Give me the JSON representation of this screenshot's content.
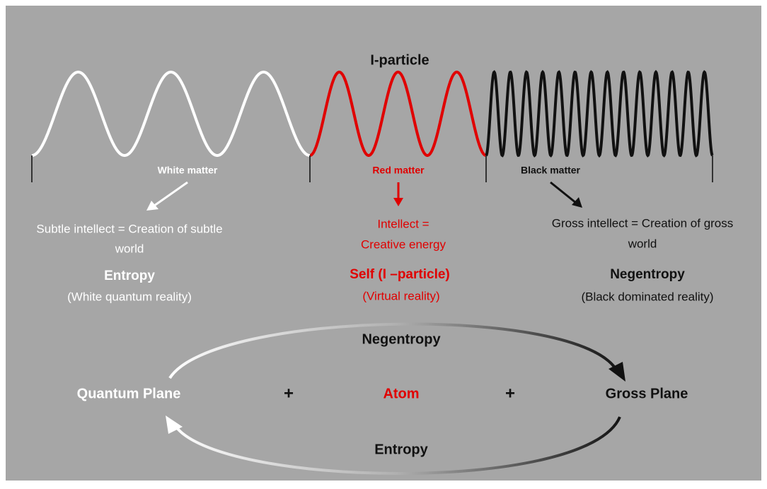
{
  "diagram": {
    "title": "I-particle",
    "matters": [
      {
        "label": "White matter",
        "intellect": [
          "Subtle intellect = Creation of subtle",
          "world"
        ],
        "heading": "Entropy",
        "reality": "(White quantum reality)"
      },
      {
        "label": "Red matter",
        "intellect": [
          "Intellect =",
          "Creative energy"
        ],
        "heading": "Self (I –particle)",
        "reality": "(Virtual reality)"
      },
      {
        "label": "Black matter",
        "intellect": [
          "Gross intellect = Creation of gross",
          "world"
        ],
        "heading": "Negentropy",
        "reality": "(Black dominated reality)"
      }
    ],
    "cycle": {
      "top": "Negentropy",
      "bottom": "Entropy",
      "left": "Quantum Plane",
      "plus_left": "+",
      "center": "Atom",
      "plus_right": "+",
      "right": "Gross Plane"
    }
  }
}
